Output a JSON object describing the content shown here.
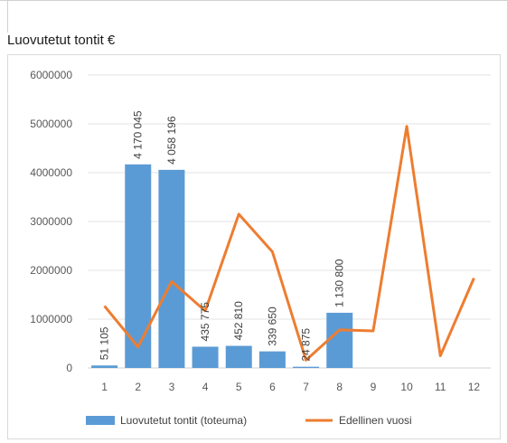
{
  "title": "Luovutetut tontit €",
  "chart_data": {
    "type": "bar",
    "title": "Luovutetut tontit €",
    "xlabel": "",
    "ylabel": "",
    "categories": [
      "1",
      "2",
      "3",
      "4",
      "5",
      "6",
      "7",
      "8",
      "9",
      "10",
      "11",
      "12"
    ],
    "ylim": [
      0,
      6000000
    ],
    "yticks": [
      0,
      1000000,
      2000000,
      3000000,
      4000000,
      5000000,
      6000000
    ],
    "ytick_labels": [
      "0",
      "1000000",
      "2000000",
      "3000000",
      "4000000",
      "5000000",
      "6000000"
    ],
    "grid": true,
    "legend_position": "bottom",
    "series": [
      {
        "name": "Luovutetut tontit (toteuma)",
        "type": "bar",
        "color": "#5b9bd5",
        "values": [
          51105,
          4170045,
          4058196,
          435775,
          452810,
          339650,
          24875,
          1130800,
          null,
          null,
          null,
          null
        ],
        "data_labels": [
          "51 105",
          "4 170 045",
          "4 058 196",
          "435 775",
          "452 810",
          "339 650",
          "24 875",
          "1 130 800"
        ]
      },
      {
        "name": "Edellinen vuosi",
        "type": "line",
        "color": "#ed7d31",
        "values": [
          1270000,
          430000,
          1770000,
          1170000,
          3150000,
          2380000,
          160000,
          780000,
          760000,
          4950000,
          250000,
          1840000
        ]
      }
    ]
  }
}
